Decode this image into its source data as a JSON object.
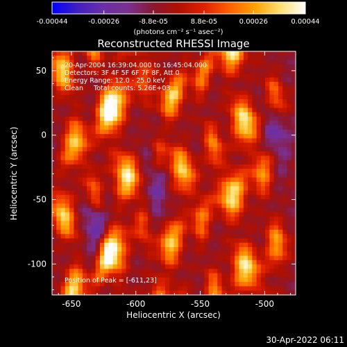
{
  "colorbar": {
    "tick_labels": [
      "-0.00044",
      "-0.00026",
      "-8.8e-05",
      "8.8e-05",
      "0.00026",
      "0.00044"
    ],
    "tick_values": [
      -0.00044,
      -0.00026,
      -8.8e-05,
      8.8e-05,
      0.00026,
      0.00044
    ],
    "range": [
      -0.00044,
      0.00044
    ],
    "unit_label": "(photons cm⁻² s⁻¹ asec⁻²)"
  },
  "chart_data": {
    "type": "heatmap",
    "title": "Reconstructed RHESSI Image",
    "xlabel": "Heliocentric X (arcsec)",
    "ylabel": "Heliocentric Y (arcsec)",
    "xlim": [
      -665,
      -476
    ],
    "ylim": [
      -124,
      65
    ],
    "x_ticks": [
      -650,
      -600,
      -550,
      -500
    ],
    "y_ticks": [
      -100,
      -50,
      0,
      50
    ],
    "x_tick_labels": [
      "-650",
      "-600",
      "-550",
      "-500"
    ],
    "y_tick_labels": [
      "-100",
      "-50",
      "0",
      "50"
    ],
    "annotations": [
      "20-Apr-2004 16:39:04.000 to 16:45:04.000",
      "Detectors: 3F 4F 5F 6F 7F 8F, Att 0",
      "Energy Range: 12.0 - 25.0 keV",
      "Clean     Total counts: 5.26E+03"
    ],
    "peak_label": "Position of Peak = [-611,23]",
    "peak": {
      "x": -611,
      "y": 23
    },
    "colormap": [
      "#0000ff",
      "#4020c0",
      "#6a2ea8",
      "#7a3090",
      "#8a1830",
      "#b01000",
      "#e02000",
      "#ff6000",
      "#ffa000",
      "#ffe070",
      "#ffffff"
    ]
  },
  "footer": {
    "timestamp": "30-Apr-2022 06:11"
  }
}
